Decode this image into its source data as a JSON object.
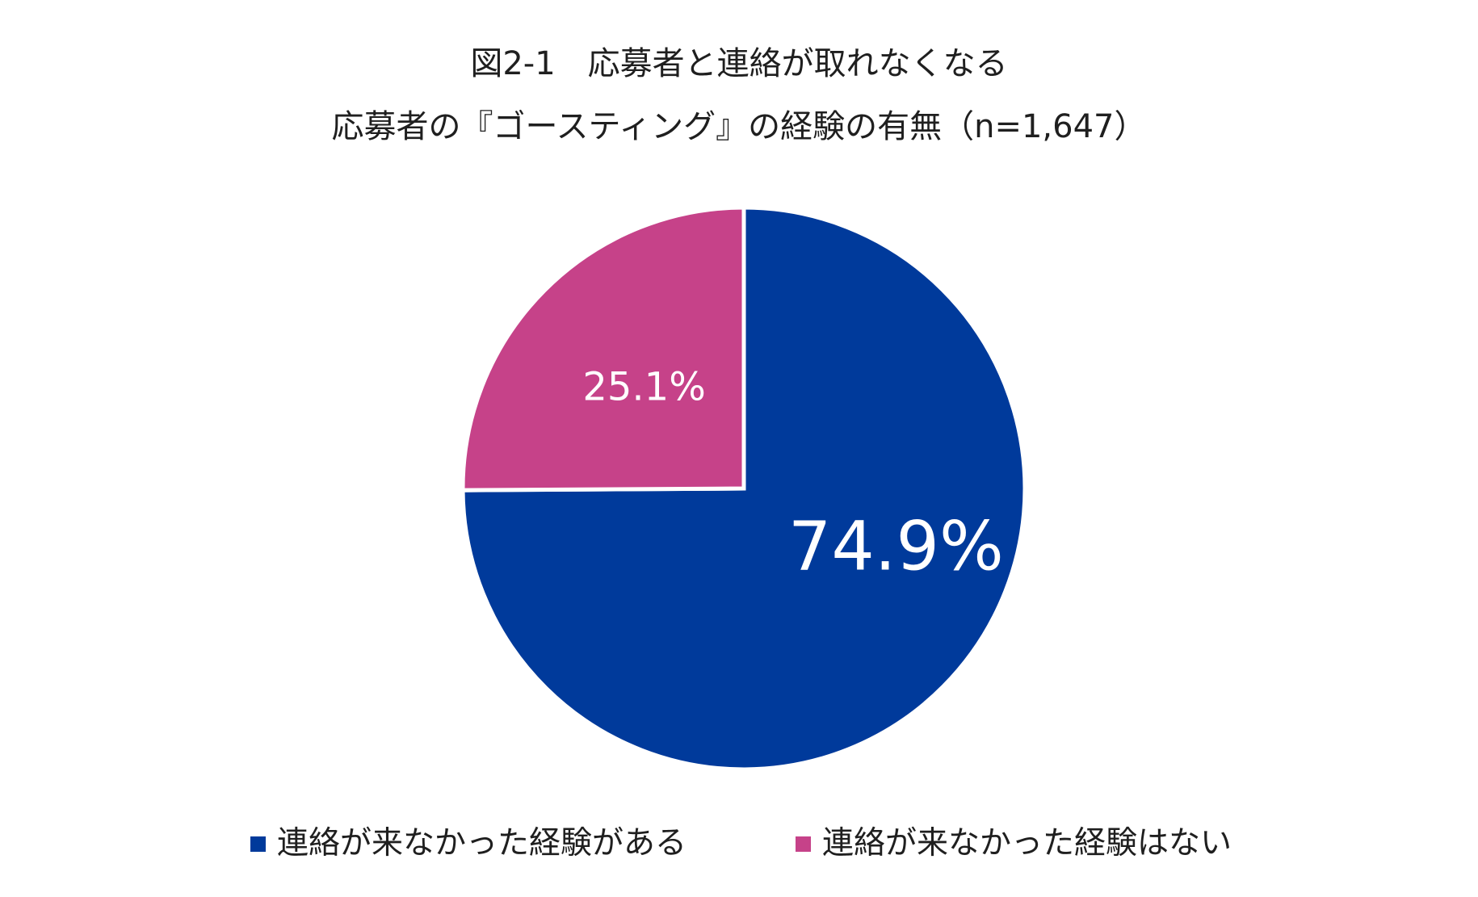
{
  "chart_data": {
    "type": "pie",
    "title": "図2-1　応募者と連絡が取れなくなる",
    "subtitle": "応募者の『ゴースティング』の経験の有無（n=1,647）",
    "categories": [
      "連絡が来なかった経験がある",
      "連絡が来なかった経験はない"
    ],
    "values": [
      74.9,
      25.1
    ],
    "data_labels": [
      "74.9%",
      "25.1%"
    ],
    "colors": [
      "#003a9b",
      "#c64289"
    ],
    "legend_position": "bottom",
    "start_angle": "12 o'clock",
    "direction": "clockwise"
  }
}
